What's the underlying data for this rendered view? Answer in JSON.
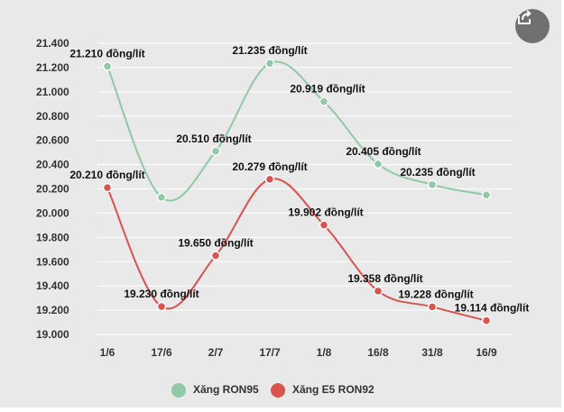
{
  "chart_data": {
    "type": "line",
    "categories": [
      "1/6",
      "17/6",
      "2/7",
      "17/7",
      "1/8",
      "16/8",
      "31/8",
      "16/9"
    ],
    "y_ticks": [
      "19.000",
      "19.200",
      "19.400",
      "19.600",
      "19.800",
      "20.000",
      "20.200",
      "20.400",
      "20.600",
      "20.800",
      "21.000",
      "21.200",
      "21.400"
    ],
    "ylim": [
      19000,
      21400
    ],
    "grid": true,
    "legend_position": "bottom",
    "series": [
      {
        "name": "Xăng RON95",
        "color": "#8fc9a5",
        "values": [
          21210,
          20130,
          20510,
          21235,
          20919,
          20405,
          20235,
          20150
        ],
        "labels": [
          "21.210 đồng/lít",
          "",
          "20.510 đồng/lít",
          "21.235 đồng/lít",
          "20.919 đồng/lít",
          "20.405 đồng/lít",
          "20.235 đồng/lít",
          ""
        ]
      },
      {
        "name": "Xăng E5 RON92",
        "color": "#d9534f",
        "values": [
          20210,
          19230,
          19650,
          20279,
          19902,
          19358,
          19228,
          19114
        ],
        "labels": [
          "20.210 đồng/lít",
          "19.230 đồng/lít",
          "19.650 đồng/lít",
          "20.279 đồng/lít",
          "19.902 đồng/lít",
          "19.358 đồng/lít",
          "19.228 đồng/lít",
          "19.114 đồng/lít"
        ]
      }
    ]
  },
  "share_icon": "share-icon"
}
